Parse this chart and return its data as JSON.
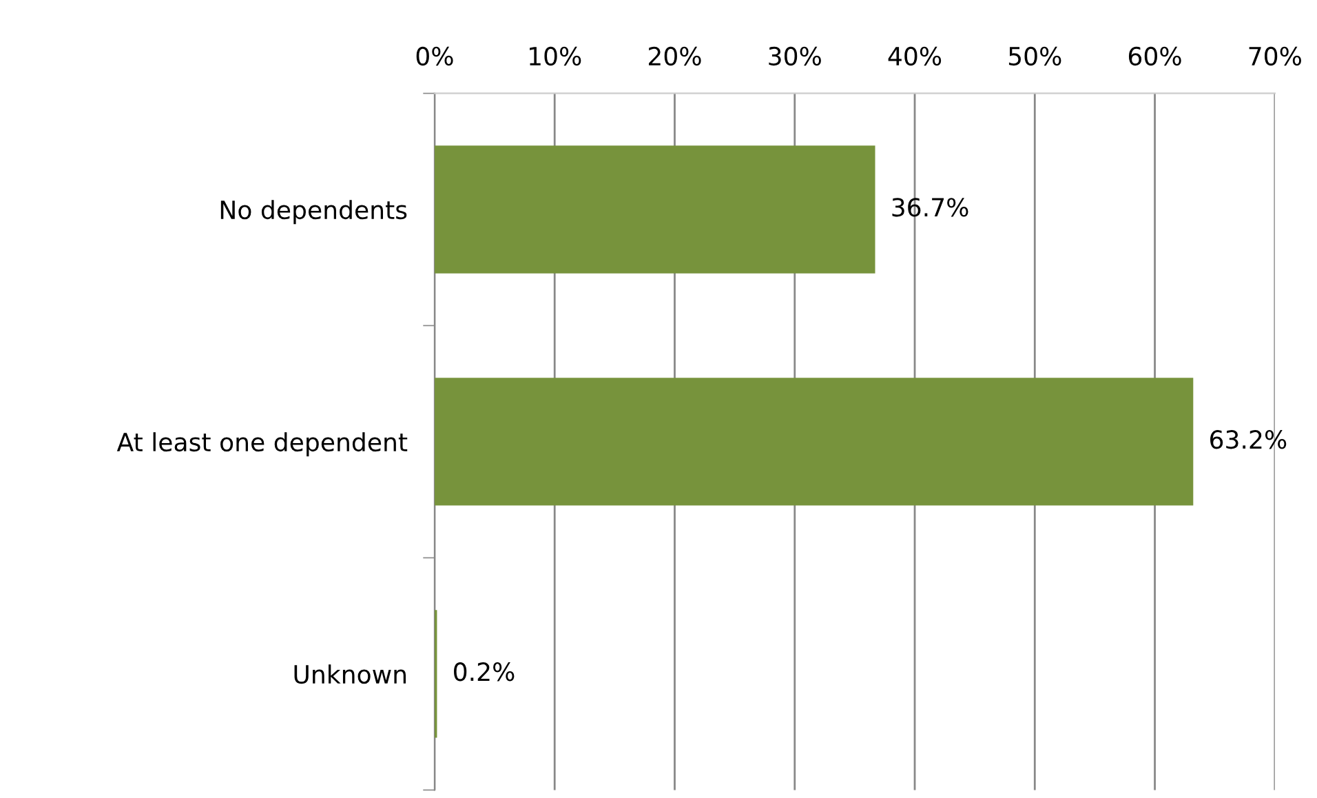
{
  "chart_data": {
    "type": "bar",
    "orientation": "horizontal",
    "categories": [
      "No dependents",
      "At least one dependent",
      "Unknown"
    ],
    "values": [
      36.7,
      63.2,
      0.2
    ],
    "value_labels": [
      "36.7%",
      "63.2%",
      "0.2%"
    ],
    "color": "#77933c",
    "xlim": [
      0,
      70
    ],
    "xticks": [
      {
        "value": 0,
        "label": "0%"
      },
      {
        "value": 10,
        "label": "10%"
      },
      {
        "value": 20,
        "label": "20%"
      },
      {
        "value": 30,
        "label": "30%"
      },
      {
        "value": 40,
        "label": "40%"
      },
      {
        "value": 50,
        "label": "50%"
      },
      {
        "value": 60,
        "label": "60%"
      },
      {
        "value": 70,
        "label": "70%"
      }
    ],
    "grid": "x"
  }
}
